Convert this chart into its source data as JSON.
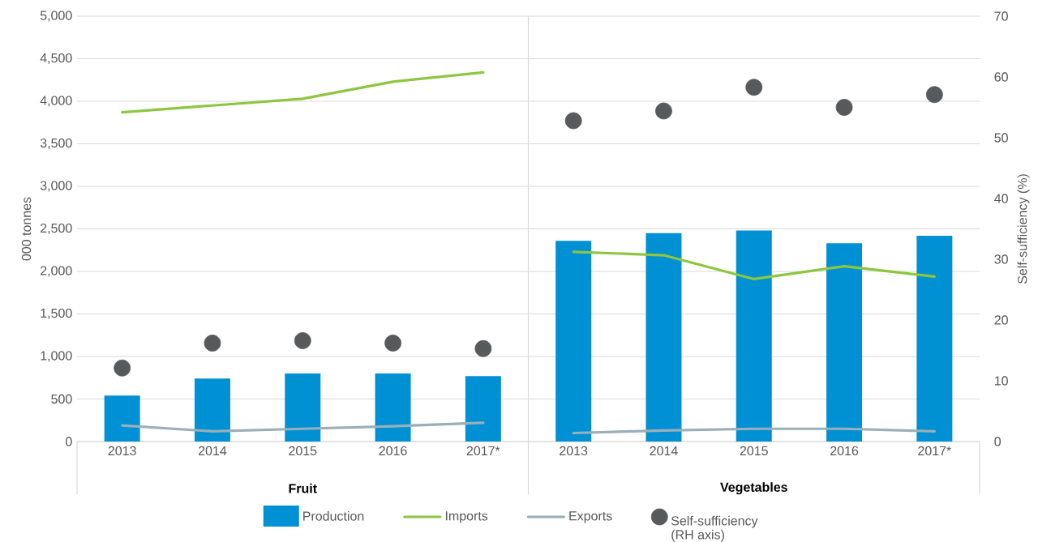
{
  "chart_data": {
    "type": "bar",
    "categories": [
      "2013",
      "2014",
      "2015",
      "2016",
      "2017*",
      "2013",
      "2014",
      "2015",
      "2016",
      "2017*"
    ],
    "annotations": [
      "Fruit",
      "Vegetables"
    ],
    "ylabel": "000 tonnes",
    "y2label": "Self-sufficiency (%)",
    "series": [
      {
        "name": "Production",
        "color": "#0090d4",
        "values": [
          540,
          740,
          800,
          800,
          770,
          2360,
          2450,
          2480,
          2330,
          2420
        ]
      },
      {
        "name": "Imports",
        "type": "line",
        "color": "#8dc63f",
        "values": [
          3870,
          3950,
          4030,
          4230,
          4340,
          null,
          null,
          null,
          null,
          null
        ]
      },
      {
        "type": "line",
        "color": "#8dc63f",
        "values": [
          null,
          null,
          null,
          null,
          null,
          2230,
          2190,
          1910,
          2060,
          1940
        ]
      },
      {
        "name": "Exports",
        "type": "line",
        "color": "#9aafb9",
        "values": [
          190,
          120,
          150,
          180,
          220,
          null,
          null,
          null,
          null,
          null
        ]
      },
      {
        "type": "line",
        "color": "#9aafb9",
        "values": [
          null,
          null,
          null,
          null,
          null,
          100,
          130,
          150,
          150,
          120
        ]
      },
      {
        "name": "Self-sufficiency (RH axis)",
        "type": "scatter",
        "axis": "y2",
        "marker": "circle",
        "color": "#58595b",
        "values": [
          12.1,
          16.2,
          16.6,
          16.2,
          15.3,
          52.8,
          54.4,
          58.3,
          55.0,
          57.1
        ]
      }
    ],
    "ylim": [
      0,
      5000
    ],
    "yticks": [
      0,
      500,
      {
        "value": 1000,
        "label": "1,000"
      },
      {
        "value": 1500,
        "label": "1,500"
      },
      {
        "value": 2000,
        "label": "2,000"
      },
      {
        "value": 2500,
        "label": "2,500"
      },
      {
        "value": 3000,
        "label": "3,000"
      },
      {
        "value": 3500,
        "label": "3,500"
      },
      {
        "value": 4000,
        "label": "4,000"
      },
      {
        "value": 4500,
        "label": "4,500"
      },
      {
        "value": 5000,
        "label": "5,000"
      }
    ],
    "y2lim": [
      0,
      70
    ],
    "y2ticks": [
      0,
      10,
      20,
      30,
      40,
      50,
      60,
      70
    ],
    "grid": "y",
    "legend": "bottom"
  }
}
